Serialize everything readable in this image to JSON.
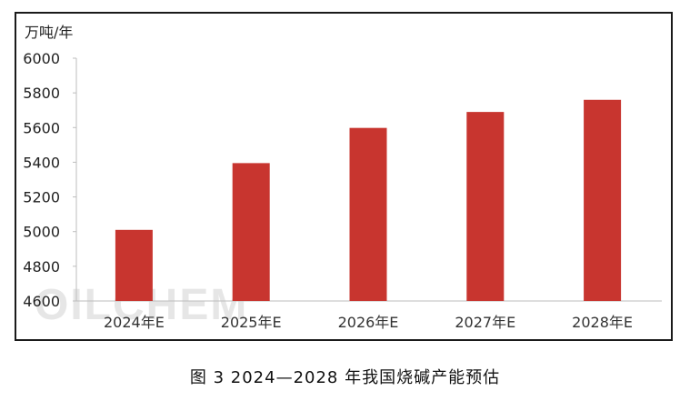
{
  "chart_data": {
    "type": "bar",
    "unit_label": "万吨/年",
    "categories": [
      "2024年E",
      "2025年E",
      "2026年E",
      "2027年E",
      "2028年E"
    ],
    "values": [
      5010,
      5395,
      5598,
      5690,
      5760
    ],
    "ylim": [
      4600,
      6000
    ],
    "yticks": [
      4600,
      4800,
      5000,
      5200,
      5400,
      5600,
      5800,
      6000
    ],
    "bar_color": "#c8352f",
    "grid": false,
    "caption": "图 3  2024—2028 年我国烧碱产能预估",
    "watermark": "OILCHEM"
  }
}
